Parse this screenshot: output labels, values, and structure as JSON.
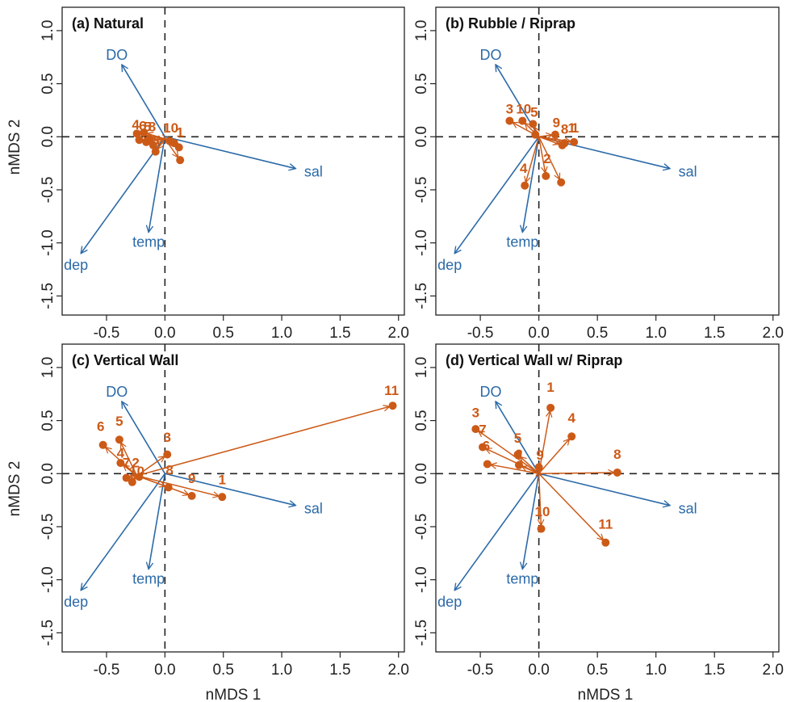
{
  "axes": {
    "xlabel": "nMDS 1",
    "ylabel": "nMDS 2"
  },
  "colors": {
    "vector": "#2b6aa8",
    "site": "#cc5a17",
    "axis": "#222222"
  },
  "chart_data": [
    {
      "type": "scatter",
      "title": "(a) Natural",
      "xlim": [
        -0.88,
        2.05
      ],
      "ylim": [
        -1.68,
        1.22
      ],
      "xticks": [
        "-0.5",
        "0.0",
        "0.5",
        "1.0",
        "1.5",
        "2.0"
      ],
      "yticks": [
        "-1.5",
        "-1.0",
        "-0.5",
        "0.0",
        "0.5",
        "1.0"
      ],
      "grid": false,
      "reference_lines": [
        0,
        0
      ],
      "centroid": [
        0.0,
        -0.02
      ],
      "vectors": [
        {
          "label": "DO",
          "x": -0.37,
          "y": 0.68
        },
        {
          "label": "sal",
          "x": 1.12,
          "y": -0.3
        },
        {
          "label": "temp",
          "x": -0.14,
          "y": -0.9
        },
        {
          "label": "dep",
          "x": -0.72,
          "y": -1.1
        }
      ],
      "points": [
        {
          "label": "4",
          "x": -0.24,
          "y": 0.03
        },
        {
          "label": "6",
          "x": -0.18,
          "y": 0.04
        },
        {
          "label": "5",
          "x": -0.22,
          "y": -0.03
        },
        {
          "label": "7",
          "x": -0.16,
          "y": -0.05
        },
        {
          "label": "3",
          "x": -0.13,
          "y": -0.02
        },
        {
          "label": "8",
          "x": -0.1,
          "y": -0.08
        },
        {
          "label": "2",
          "x": -0.08,
          "y": -0.14
        },
        {
          "label": "9",
          "x": 0.04,
          "y": -0.04
        },
        {
          "label": "10",
          "x": 0.08,
          "y": -0.06
        },
        {
          "label": "1",
          "x": 0.12,
          "y": -0.1
        },
        {
          "label": "11",
          "x": 0.13,
          "y": -0.22
        }
      ],
      "point_labels": [
        {
          "text": "4",
          "x": -0.25,
          "y": 0.07
        },
        {
          "text": "6",
          "x": -0.19,
          "y": 0.06
        },
        {
          "text": "5",
          "x": -0.15,
          "y": 0.05
        },
        {
          "text": "8",
          "x": -0.11,
          "y": 0.05
        },
        {
          "text": "10",
          "x": 0.05,
          "y": 0.04
        },
        {
          "text": "1",
          "x": 0.13,
          "y": 0.0
        }
      ]
    },
    {
      "type": "scatter",
      "title": "(b) Rubble / Riprap",
      "xlim": [
        -0.88,
        2.05
      ],
      "ylim": [
        -1.68,
        1.22
      ],
      "xticks": [
        "-0.5",
        "0.0",
        "0.5",
        "1.0",
        "1.5",
        "2.0"
      ],
      "yticks": [
        "-1.5",
        "-1.0",
        "-0.5",
        "0.0",
        "0.5",
        "1.0"
      ],
      "grid": false,
      "reference_lines": [
        0,
        0
      ],
      "centroid": [
        0.0,
        0.0
      ],
      "vectors": [
        {
          "label": "DO",
          "x": -0.37,
          "y": 0.68
        },
        {
          "label": "sal",
          "x": 1.12,
          "y": -0.3
        },
        {
          "label": "temp",
          "x": -0.14,
          "y": -0.9
        },
        {
          "label": "dep",
          "x": -0.72,
          "y": -1.1
        }
      ],
      "points": [
        {
          "label": "3",
          "x": -0.25,
          "y": 0.15
        },
        {
          "label": "10",
          "x": -0.14,
          "y": 0.15
        },
        {
          "label": "5",
          "x": -0.05,
          "y": 0.12
        },
        {
          "label": "6",
          "x": -0.03,
          "y": 0.02
        },
        {
          "label": "9",
          "x": 0.14,
          "y": 0.02
        },
        {
          "label": "8",
          "x": 0.22,
          "y": -0.06
        },
        {
          "label": "11",
          "x": 0.3,
          "y": -0.05
        },
        {
          "label": "7",
          "x": 0.2,
          "y": -0.08
        },
        {
          "label": "2",
          "x": 0.06,
          "y": -0.37
        },
        {
          "label": "1",
          "x": 0.19,
          "y": -0.43
        },
        {
          "label": "4",
          "x": -0.12,
          "y": -0.46
        }
      ],
      "point_labels": [
        {
          "text": "3",
          "x": -0.25,
          "y": 0.22
        },
        {
          "text": "10",
          "x": -0.13,
          "y": 0.22
        },
        {
          "text": "5",
          "x": -0.04,
          "y": 0.19
        },
        {
          "text": "9",
          "x": 0.15,
          "y": 0.09
        },
        {
          "text": "8",
          "x": 0.22,
          "y": 0.03
        },
        {
          "text": "1",
          "x": 0.28,
          "y": 0.04
        },
        {
          "text": "1",
          "x": 0.31,
          "y": 0.04
        },
        {
          "text": "2",
          "x": 0.07,
          "y": -0.25
        },
        {
          "text": "4",
          "x": -0.13,
          "y": -0.34
        }
      ]
    },
    {
      "type": "scatter",
      "title": "(c) Vertical Wall",
      "xlim": [
        -0.88,
        2.05
      ],
      "ylim": [
        -1.68,
        1.22
      ],
      "xticks": [
        "-0.5",
        "0.0",
        "0.5",
        "1.0",
        "1.5",
        "2.0"
      ],
      "yticks": [
        "-1.5",
        "-1.0",
        "-0.5",
        "0.0",
        "0.5",
        "1.0"
      ],
      "grid": false,
      "reference_lines": [
        0,
        0
      ],
      "centroid": [
        -0.24,
        -0.02
      ],
      "vectors": [
        {
          "label": "DO",
          "x": -0.37,
          "y": 0.68
        },
        {
          "label": "sal",
          "x": 1.12,
          "y": -0.3
        },
        {
          "label": "temp",
          "x": -0.14,
          "y": -0.9
        },
        {
          "label": "dep",
          "x": -0.72,
          "y": -1.1
        }
      ],
      "points": [
        {
          "label": "6",
          "x": -0.53,
          "y": 0.27
        },
        {
          "label": "5",
          "x": -0.39,
          "y": 0.32
        },
        {
          "label": "4",
          "x": -0.38,
          "y": 0.1
        },
        {
          "label": "7",
          "x": -0.33,
          "y": -0.04
        },
        {
          "label": "2",
          "x": -0.28,
          "y": -0.08
        },
        {
          "label": "10",
          "x": -0.22,
          "y": -0.03
        },
        {
          "label": "3",
          "x": 0.02,
          "y": 0.18
        },
        {
          "label": "8",
          "x": 0.03,
          "y": -0.13
        },
        {
          "label": "9",
          "x": 0.23,
          "y": -0.21
        },
        {
          "label": "1",
          "x": 0.49,
          "y": -0.22
        },
        {
          "label": "11",
          "x": 1.95,
          "y": 0.64
        }
      ],
      "point_labels": [
        {
          "text": "6",
          "x": -0.55,
          "y": 0.4
        },
        {
          "text": "5",
          "x": -0.39,
          "y": 0.45
        },
        {
          "text": "3",
          "x": 0.02,
          "y": 0.3
        },
        {
          "text": "4",
          "x": -0.38,
          "y": 0.15
        },
        {
          "text": "7",
          "x": -0.33,
          "y": 0.06
        },
        {
          "text": "2",
          "x": -0.25,
          "y": 0.06
        },
        {
          "text": "10",
          "x": -0.24,
          "y": -0.02
        },
        {
          "text": "8",
          "x": 0.04,
          "y": -0.01
        },
        {
          "text": "9",
          "x": 0.23,
          "y": -0.09
        },
        {
          "text": "1",
          "x": 0.49,
          "y": -0.1
        },
        {
          "text": "11",
          "x": 1.94,
          "y": 0.74
        }
      ]
    },
    {
      "type": "scatter",
      "title": "(d) Vertical Wall w/ Riprap",
      "xlim": [
        -0.88,
        2.05
      ],
      "ylim": [
        -1.68,
        1.22
      ],
      "xticks": [
        "-0.5",
        "0.0",
        "0.5",
        "1.0",
        "1.5",
        "2.0"
      ],
      "yticks": [
        "-1.5",
        "-1.0",
        "-0.5",
        "0.0",
        "0.5",
        "1.0"
      ],
      "grid": false,
      "reference_lines": [
        0,
        0
      ],
      "centroid": [
        0.0,
        0.0
      ],
      "vectors": [
        {
          "label": "DO",
          "x": -0.37,
          "y": 0.68
        },
        {
          "label": "sal",
          "x": 1.12,
          "y": -0.3
        },
        {
          "label": "temp",
          "x": -0.14,
          "y": -0.9
        },
        {
          "label": "dep",
          "x": -0.72,
          "y": -1.1
        }
      ],
      "points": [
        {
          "label": "3",
          "x": -0.54,
          "y": 0.42
        },
        {
          "label": "7",
          "x": -0.48,
          "y": 0.25
        },
        {
          "label": "2",
          "x": -0.44,
          "y": 0.09
        },
        {
          "label": "5",
          "x": -0.18,
          "y": 0.18
        },
        {
          "label": "6",
          "x": -0.17,
          "y": 0.08
        },
        {
          "label": "9",
          "x": 0.0,
          "y": 0.06
        },
        {
          "label": "1",
          "x": 0.1,
          "y": 0.62
        },
        {
          "label": "4",
          "x": 0.28,
          "y": 0.35
        },
        {
          "label": "8",
          "x": 0.67,
          "y": 0.01
        },
        {
          "label": "10",
          "x": 0.02,
          "y": -0.52
        },
        {
          "label": "11",
          "x": 0.57,
          "y": -0.65
        }
      ],
      "point_labels": [
        {
          "text": "1",
          "x": 0.1,
          "y": 0.77
        },
        {
          "text": "4",
          "x": 0.28,
          "y": 0.48
        },
        {
          "text": "3",
          "x": -0.54,
          "y": 0.53
        },
        {
          "text": "7",
          "x": -0.48,
          "y": 0.37
        },
        {
          "text": "5",
          "x": -0.18,
          "y": 0.29
        },
        {
          "text": "6",
          "x": -0.45,
          "y": 0.22
        },
        {
          "text": "2",
          "x": -0.17,
          "y": 0.14
        },
        {
          "text": "9",
          "x": 0.01,
          "y": 0.13
        },
        {
          "text": "8",
          "x": 0.67,
          "y": 0.14
        },
        {
          "text": "10",
          "x": 0.03,
          "y": -0.4
        },
        {
          "text": "11",
          "x": 0.57,
          "y": -0.52
        }
      ]
    }
  ]
}
